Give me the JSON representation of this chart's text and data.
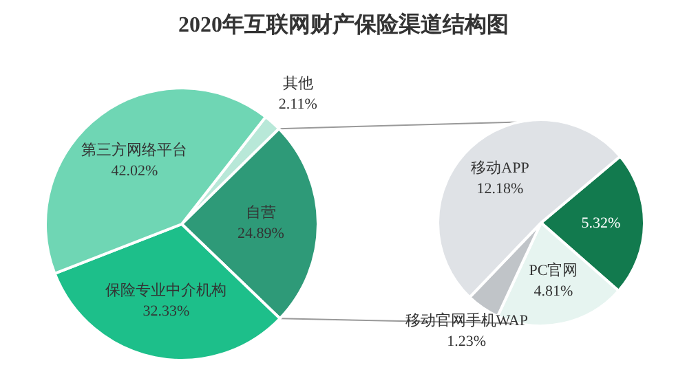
{
  "chart_data": [
    {
      "type": "pie",
      "title": "2020年互联网财产保险渠道结构图",
      "categories": [
        "其他",
        "自营",
        "保险专业中介机构",
        "第三方网络平台"
      ],
      "values": [
        2.11,
        24.89,
        32.33,
        42.02
      ],
      "colors": [
        "#b8e8d8",
        "#2e9a78",
        "#1dbf8a",
        "#6fd6b4"
      ],
      "value_labels": [
        "2.11%",
        "24.89%",
        "32.33%",
        "42.02%"
      ]
    },
    {
      "type": "pie",
      "categories": [
        null,
        "PC官网",
        "移动官网手机WAP",
        "移动APP"
      ],
      "values": [
        5.32,
        4.81,
        1.23,
        12.18
      ],
      "colors": [
        "#127a4e",
        "#e6f4f0",
        "#c0c4c8",
        "#dfe2e6"
      ],
      "value_labels": [
        "5.32%",
        "4.81%",
        "1.23%",
        "12.18%"
      ]
    }
  ]
}
